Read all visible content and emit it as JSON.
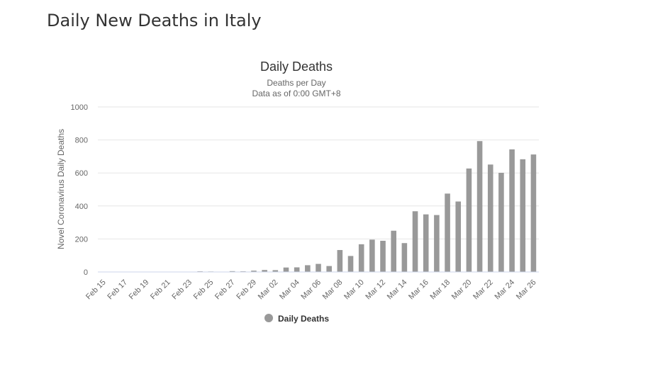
{
  "page": {
    "title": "Daily New Deaths in Italy"
  },
  "chart_data": {
    "type": "bar",
    "title": "Daily Deaths",
    "subtitle": [
      "Deaths per Day",
      "Data as of 0:00 GMT+8"
    ],
    "xlabel": "",
    "ylabel": "Novel Coronavirus Daily Deaths",
    "ylim": [
      0,
      1000
    ],
    "yticks": [
      0,
      200,
      400,
      600,
      800,
      1000
    ],
    "grid": true,
    "legend_position": "bottom-center",
    "colors": {
      "bar": "#999999",
      "legend_marker": "#999999"
    },
    "categories": [
      "Feb 15",
      "Feb 16",
      "Feb 17",
      "Feb 18",
      "Feb 19",
      "Feb 20",
      "Feb 21",
      "Feb 22",
      "Feb 23",
      "Feb 24",
      "Feb 25",
      "Feb 26",
      "Feb 27",
      "Feb 28",
      "Feb 29",
      "Mar 01",
      "Mar 02",
      "Mar 03",
      "Mar 04",
      "Mar 05",
      "Mar 06",
      "Mar 07",
      "Mar 08",
      "Mar 09",
      "Mar 10",
      "Mar 11",
      "Mar 12",
      "Mar 13",
      "Mar 14",
      "Mar 15",
      "Mar 16",
      "Mar 17",
      "Mar 18",
      "Mar 19",
      "Mar 20",
      "Mar 21",
      "Mar 22",
      "Mar 23",
      "Mar 24",
      "Mar 25",
      "Mar 26"
    ],
    "tick_labels": [
      "Feb 15",
      "Feb 17",
      "Feb 19",
      "Feb 21",
      "Feb 23",
      "Feb 25",
      "Feb 27",
      "Feb 29",
      "Mar 02",
      "Mar 04",
      "Mar 06",
      "Mar 08",
      "Mar 10",
      "Mar 12",
      "Mar 14",
      "Mar 16",
      "Mar 18",
      "Mar 20",
      "Mar 22",
      "Mar 24",
      "Mar 26"
    ],
    "series": [
      {
        "name": "Daily Deaths",
        "values": [
          0,
          0,
          0,
          0,
          0,
          0,
          0,
          2,
          1,
          4,
          3,
          2,
          5,
          4,
          8,
          12,
          11,
          27,
          28,
          41,
          49,
          36,
          133,
          97,
          168,
          196,
          189,
          250,
          175,
          368,
          349,
          345,
          475,
          427,
          627,
          793,
          651,
          601,
          743,
          683,
          712
        ]
      }
    ]
  }
}
